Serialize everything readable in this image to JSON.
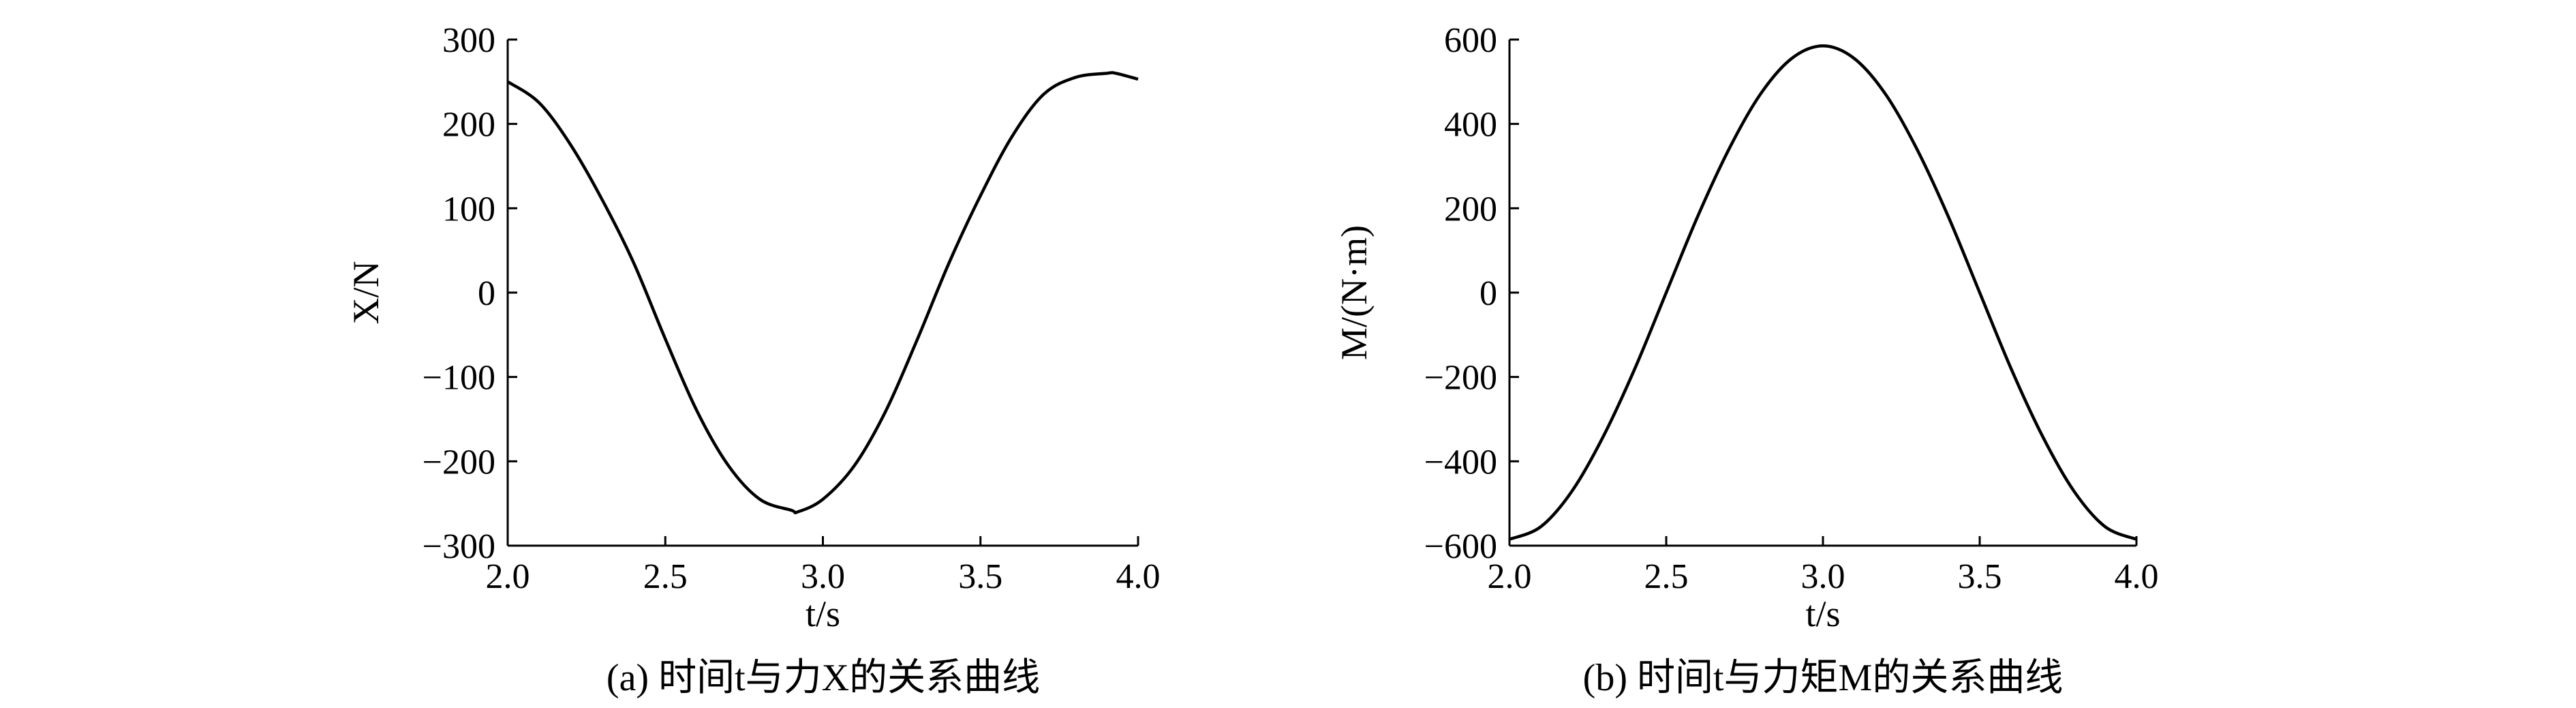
{
  "chart_data": [
    {
      "type": "line",
      "caption": "(a) 时间t与力X的关系曲线",
      "xlabel": "t/s",
      "ylabel": "X/N",
      "xlim": [
        2.0,
        4.0
      ],
      "ylim": [
        -300,
        300
      ],
      "xticks": [
        "2.0",
        "2.5",
        "3.0",
        "3.5",
        "4.0"
      ],
      "yticks": [
        "300",
        "200",
        "100",
        "0",
        "−100",
        "−200",
        "−300"
      ],
      "grid": false,
      "series": [
        {
          "x": [
            2.0,
            2.1,
            2.2,
            2.3,
            2.4,
            2.5,
            2.6,
            2.7,
            2.8,
            2.9,
            2.92,
            3.0,
            3.1,
            3.2,
            3.3,
            3.4,
            3.5,
            3.6,
            3.7,
            3.8,
            3.9,
            3.93,
            4.0
          ],
          "y": [
            250,
            225,
            175,
            110,
            35,
            -55,
            -140,
            -205,
            -245,
            -258,
            -260,
            -245,
            -205,
            -140,
            -55,
            35,
            115,
            185,
            235,
            255,
            260,
            260,
            253
          ]
        }
      ]
    },
    {
      "type": "line",
      "caption": "(b) 时间t与力矩M的关系曲线",
      "xlabel": "t/s",
      "ylabel": "M/(N·m)",
      "xlim": [
        2.0,
        4.0
      ],
      "ylim": [
        -600,
        600
      ],
      "xticks": [
        "2.0",
        "2.5",
        "3.0",
        "3.5",
        "4.0"
      ],
      "yticks": [
        "600",
        "400",
        "200",
        "0",
        "−200",
        "−400",
        "−600"
      ],
      "grid": false,
      "series": [
        {
          "x": [
            2.0,
            2.1,
            2.2,
            2.3,
            2.4,
            2.5,
            2.6,
            2.7,
            2.8,
            2.9,
            3.0,
            3.1,
            3.2,
            3.3,
            3.4,
            3.5,
            3.6,
            3.7,
            3.8,
            3.9,
            4.0
          ],
          "y": [
            -585,
            -555,
            -470,
            -340,
            -180,
            0,
            180,
            340,
            470,
            555,
            585,
            555,
            470,
            340,
            180,
            0,
            -180,
            -340,
            -470,
            -555,
            -585
          ]
        }
      ]
    }
  ]
}
